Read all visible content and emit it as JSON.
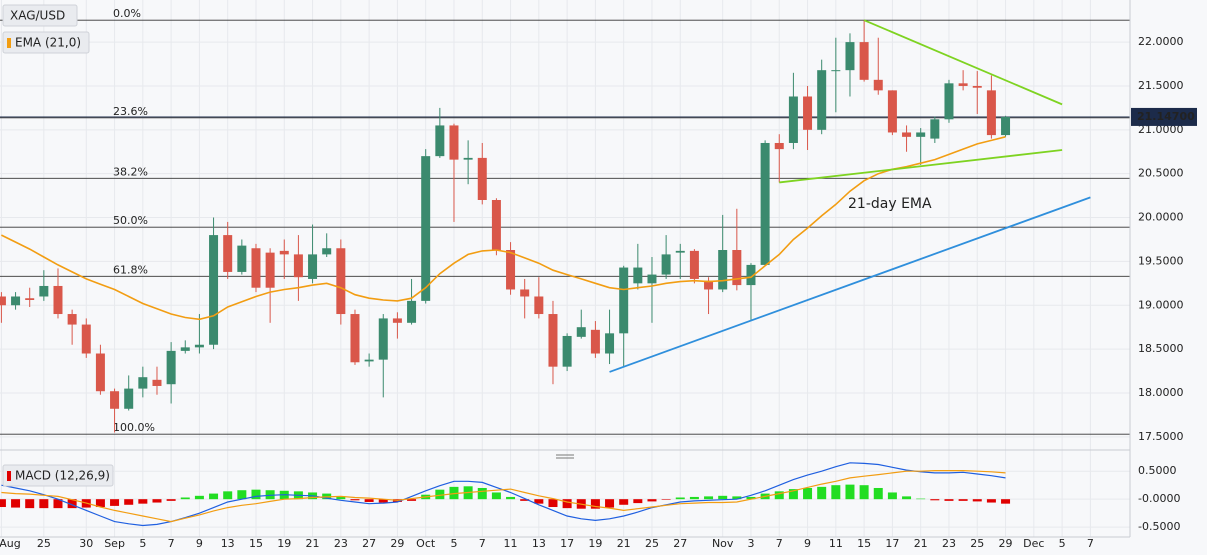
{
  "chart_data": [
    {
      "type": "candlestick",
      "xlim": [
        -0.1,
        79.8
      ],
      "ylim": [
        17.35,
        22.48
      ],
      "xticks": [
        {
          "value": 0,
          "label": "Aug"
        },
        {
          "value": 3,
          "label": "25"
        },
        {
          "value": 6,
          "label": "30"
        },
        {
          "value": 8,
          "label": "Sep"
        },
        {
          "value": 10,
          "label": "5"
        },
        {
          "value": 12,
          "label": "7"
        },
        {
          "value": 14,
          "label": "9"
        },
        {
          "value": 16,
          "label": "13"
        },
        {
          "value": 18,
          "label": "15"
        },
        {
          "value": 20,
          "label": "19"
        },
        {
          "value": 22,
          "label": "21"
        },
        {
          "value": 24,
          "label": "23"
        },
        {
          "value": 26,
          "label": "27"
        },
        {
          "value": 28,
          "label": "29"
        },
        {
          "value": 30,
          "label": "Oct"
        },
        {
          "value": 32,
          "label": "5"
        },
        {
          "value": 34,
          "label": "7"
        },
        {
          "value": 36,
          "label": "11"
        },
        {
          "value": 38,
          "label": "13"
        },
        {
          "value": 40,
          "label": "17"
        },
        {
          "value": 42,
          "label": "19"
        },
        {
          "value": 44,
          "label": "21"
        },
        {
          "value": 46,
          "label": "25"
        },
        {
          "value": 48,
          "label": "27"
        },
        {
          "value": 51,
          "label": "Nov"
        },
        {
          "value": 53,
          "label": "3"
        },
        {
          "value": 55,
          "label": "7"
        },
        {
          "value": 57,
          "label": "9"
        },
        {
          "value": 59,
          "label": "11"
        },
        {
          "value": 61,
          "label": "15"
        },
        {
          "value": 63,
          "label": "17"
        },
        {
          "value": 65,
          "label": "21"
        },
        {
          "value": 67,
          "label": "23"
        },
        {
          "value": 69,
          "label": "25"
        },
        {
          "value": 71,
          "label": "29"
        },
        {
          "value": 73,
          "label": "Dec"
        },
        {
          "value": 75,
          "label": "5"
        },
        {
          "value": 77,
          "label": "7"
        }
      ],
      "yticks": [
        {
          "value": 22,
          "label": "22.0000"
        },
        {
          "value": 21.5,
          "label": "21.5000"
        },
        {
          "value": 21,
          "label": "21.0000"
        },
        {
          "value": 20.5,
          "label": "20.5000"
        },
        {
          "value": 20,
          "label": "20.0000"
        },
        {
          "value": 19.5,
          "label": "19.5000"
        },
        {
          "value": 19,
          "label": "19.0000"
        },
        {
          "value": 18.5,
          "label": "18.5000"
        },
        {
          "value": 18,
          "label": "18.0000"
        },
        {
          "value": 17.5,
          "label": "17.5000"
        }
      ],
      "grid": true,
      "last_price": {
        "value": 21.147,
        "label": "21.14700"
      },
      "series": [
        {
          "name": "XAG/USD",
          "up_color": "#3b8a6e",
          "down_color": "#d9574a",
          "open": [
            19.1,
            19.0,
            19.08,
            19.1,
            19.22,
            18.9,
            18.78,
            18.45,
            18.02,
            17.82,
            18.05,
            18.15,
            18.1,
            18.48,
            18.52,
            18.55,
            19.8,
            19.38,
            19.65,
            19.6,
            19.62,
            19.58,
            19.3,
            19.58,
            19.65,
            18.9,
            18.36,
            18.38,
            18.85,
            18.8,
            19.05,
            20.7,
            21.05,
            20.66,
            20.68,
            20.2,
            19.63,
            19.18,
            19.1,
            18.9,
            18.3,
            18.64,
            18.72,
            18.45,
            18.68,
            19.25,
            19.25,
            19.35,
            19.6,
            19.62,
            19.28,
            19.18,
            19.63,
            19.23,
            19.46,
            20.85,
            20.85,
            21.38,
            21.0,
            21.68,
            21.68,
            22.0,
            21.57,
            21.45,
            20.97,
            20.92,
            20.9,
            21.12,
            21.53,
            21.5,
            21.45,
            20.94
          ],
          "high": [
            19.15,
            19.15,
            19.2,
            19.4,
            19.42,
            18.95,
            18.85,
            18.55,
            18.05,
            18.2,
            18.3,
            18.3,
            18.58,
            18.6,
            18.9,
            20.0,
            19.95,
            19.75,
            19.7,
            19.65,
            19.75,
            19.8,
            19.92,
            19.82,
            19.75,
            18.95,
            18.45,
            18.9,
            18.92,
            19.3,
            20.78,
            21.25,
            21.07,
            20.88,
            20.85,
            20.22,
            19.72,
            19.3,
            19.32,
            19.05,
            18.68,
            18.95,
            18.82,
            18.95,
            19.45,
            19.7,
            19.55,
            19.8,
            19.7,
            19.64,
            19.32,
            20.03,
            20.1,
            19.48,
            20.88,
            20.95,
            21.65,
            21.5,
            21.8,
            22.05,
            22.1,
            22.25,
            22.05,
            21.45,
            21.05,
            21.02,
            21.15,
            21.57,
            21.68,
            21.67,
            21.62,
            21.16
          ],
          "low": [
            18.8,
            18.95,
            18.98,
            19.05,
            18.85,
            18.55,
            18.4,
            17.98,
            17.55,
            17.8,
            17.95,
            17.98,
            17.88,
            18.45,
            18.45,
            18.5,
            19.3,
            19.35,
            19.15,
            18.8,
            19.3,
            19.05,
            19.25,
            19.55,
            18.78,
            18.32,
            18.3,
            17.95,
            18.62,
            18.78,
            19.02,
            20.68,
            19.95,
            20.38,
            20.15,
            19.57,
            19.12,
            18.85,
            18.85,
            18.1,
            18.25,
            18.62,
            18.4,
            18.33,
            18.3,
            19.18,
            18.8,
            19.3,
            19.3,
            19.25,
            18.9,
            19.15,
            19.17,
            18.82,
            19.45,
            20.4,
            20.78,
            20.77,
            20.95,
            21.2,
            21.38,
            21.55,
            21.4,
            20.94,
            20.75,
            20.6,
            20.85,
            21.08,
            21.45,
            21.18,
            20.9,
            20.92
          ],
          "close": [
            19.0,
            19.1,
            19.06,
            19.22,
            18.9,
            18.78,
            18.45,
            18.02,
            17.82,
            18.05,
            18.18,
            18.08,
            18.48,
            18.52,
            18.55,
            19.8,
            19.38,
            19.68,
            19.2,
            19.2,
            19.58,
            19.32,
            19.58,
            19.65,
            18.9,
            18.35,
            18.38,
            18.85,
            18.8,
            19.05,
            20.7,
            21.05,
            20.66,
            20.68,
            20.2,
            19.63,
            19.18,
            19.1,
            18.9,
            18.3,
            18.65,
            18.75,
            18.45,
            18.68,
            19.43,
            19.43,
            19.35,
            19.58,
            19.62,
            19.3,
            19.18,
            19.63,
            19.23,
            19.46,
            20.85,
            20.78,
            21.38,
            21.0,
            21.68,
            21.68,
            22.0,
            21.57,
            21.45,
            20.97,
            20.92,
            20.97,
            21.12,
            21.53,
            21.5,
            21.48,
            20.94,
            21.147
          ]
        },
        {
          "name": "EMA (21,0)",
          "color": "#f29d12",
          "values": [
            19.8,
            19.72,
            19.64,
            19.55,
            19.46,
            19.38,
            19.3,
            19.24,
            19.18,
            19.1,
            19.02,
            18.96,
            18.9,
            18.86,
            18.84,
            18.88,
            18.98,
            19.04,
            19.1,
            19.15,
            19.18,
            19.2,
            19.23,
            19.25,
            19.2,
            19.12,
            19.08,
            19.06,
            19.05,
            19.08,
            19.2,
            19.36,
            19.48,
            19.58,
            19.62,
            19.63,
            19.6,
            19.54,
            19.48,
            19.4,
            19.35,
            19.3,
            19.25,
            19.2,
            19.18,
            19.2,
            19.22,
            19.25,
            19.27,
            19.28,
            19.27,
            19.28,
            19.3,
            19.32,
            19.45,
            19.58,
            19.75,
            19.88,
            20.02,
            20.15,
            20.3,
            20.42,
            20.5,
            20.55,
            20.58,
            20.62,
            20.66,
            20.72,
            20.78,
            20.84,
            20.88,
            20.92
          ]
        }
      ],
      "fib_levels": [
        {
          "label": "0.0%",
          "value": 22.25
        },
        {
          "label": "23.6%",
          "value": 21.136
        },
        {
          "label": "38.2%",
          "value": 20.447
        },
        {
          "label": "50.0%",
          "value": 19.89
        },
        {
          "label": "61.8%",
          "value": 19.33
        },
        {
          "label": "100.0%",
          "value": 17.53
        }
      ],
      "trendlines": [
        {
          "color": "#7ed321",
          "points": [
            [
              61,
              22.25
            ],
            [
              75,
              21.29
            ]
          ]
        },
        {
          "color": "#7ed321",
          "points": [
            [
              55,
              20.4
            ],
            [
              75,
              20.77
            ]
          ]
        },
        {
          "color": "#2f8fdc",
          "points": [
            [
              43,
              18.24
            ],
            [
              77,
              20.23
            ]
          ]
        }
      ],
      "annotations": [
        "21-day EMA"
      ],
      "annotation_color": "#f29d12"
    },
    {
      "type": "macd",
      "name": "MACD (12,26,9)",
      "ylim": [
        -0.64,
        0.7
      ],
      "yticks": [
        {
          "value": 0.5,
          "label": "0.5000"
        },
        {
          "value": 0,
          "label": "-0.0000"
        },
        {
          "value": -0.5,
          "label": "-0.5000"
        }
      ],
      "up_color": "#22dd22",
      "down_color": "#e00000",
      "macd_color": "#1f5fe0",
      "signal_color": "#f29d12",
      "histogram": [
        -0.14,
        -0.15,
        -0.16,
        -0.16,
        -0.16,
        -0.16,
        -0.15,
        -0.14,
        -0.12,
        -0.1,
        -0.08,
        -0.06,
        -0.03,
        0.03,
        0.06,
        0.1,
        0.14,
        0.16,
        0.17,
        0.16,
        0.15,
        0.14,
        0.12,
        0.1,
        0.05,
        -0.02,
        -0.05,
        -0.06,
        -0.05,
        -0.03,
        0.08,
        0.17,
        0.22,
        0.23,
        0.2,
        0.12,
        0.04,
        -0.03,
        -0.08,
        -0.14,
        -0.16,
        -0.17,
        -0.17,
        -0.15,
        -0.1,
        -0.07,
        -0.04,
        -0.01,
        0.03,
        0.04,
        0.05,
        0.06,
        0.05,
        0.04,
        0.1,
        0.14,
        0.18,
        0.2,
        0.22,
        0.25,
        0.26,
        0.25,
        0.2,
        0.12,
        0.05,
        0.01,
        -0.02,
        -0.03,
        -0.03,
        -0.04,
        -0.06,
        -0.08
      ],
      "macd": [
        0.25,
        0.2,
        0.15,
        0.08,
        0.0,
        -0.1,
        -0.2,
        -0.3,
        -0.4,
        -0.44,
        -0.47,
        -0.45,
        -0.4,
        -0.33,
        -0.25,
        -0.15,
        -0.05,
        0.0,
        0.05,
        0.07,
        0.08,
        0.07,
        0.06,
        0.02,
        -0.02,
        -0.05,
        -0.08,
        -0.07,
        -0.05,
        0.05,
        0.15,
        0.24,
        0.32,
        0.32,
        0.3,
        0.21,
        0.12,
        0.01,
        -0.1,
        -0.2,
        -0.3,
        -0.35,
        -0.38,
        -0.35,
        -0.3,
        -0.23,
        -0.15,
        -0.1,
        -0.05,
        -0.03,
        -0.02,
        -0.01,
        0.0,
        0.07,
        0.15,
        0.25,
        0.35,
        0.43,
        0.5,
        0.58,
        0.65,
        0.64,
        0.62,
        0.57,
        0.52,
        0.49,
        0.47,
        0.47,
        0.48,
        0.45,
        0.42,
        0.38
      ],
      "signal": [
        0.12,
        0.1,
        0.09,
        0.07,
        0.05,
        -0.01,
        -0.07,
        -0.14,
        -0.2,
        -0.25,
        -0.3,
        -0.35,
        -0.4,
        -0.34,
        -0.28,
        -0.21,
        -0.15,
        -0.11,
        -0.08,
        -0.04,
        0.0,
        0.01,
        0.03,
        0.04,
        0.05,
        0.03,
        0.02,
        0.0,
        -0.02,
        0.01,
        0.04,
        0.07,
        0.1,
        0.12,
        0.14,
        0.16,
        0.18,
        0.12,
        0.06,
        0.01,
        -0.05,
        -0.09,
        -0.13,
        -0.16,
        -0.2,
        -0.17,
        -0.14,
        -0.11,
        -0.08,
        -0.07,
        -0.06,
        -0.06,
        -0.05,
        0.0,
        0.05,
        0.1,
        0.15,
        0.21,
        0.27,
        0.32,
        0.38,
        0.41,
        0.44,
        0.47,
        0.5,
        0.5,
        0.51,
        0.51,
        0.51,
        0.5,
        0.49,
        0.47
      ]
    }
  ]
}
